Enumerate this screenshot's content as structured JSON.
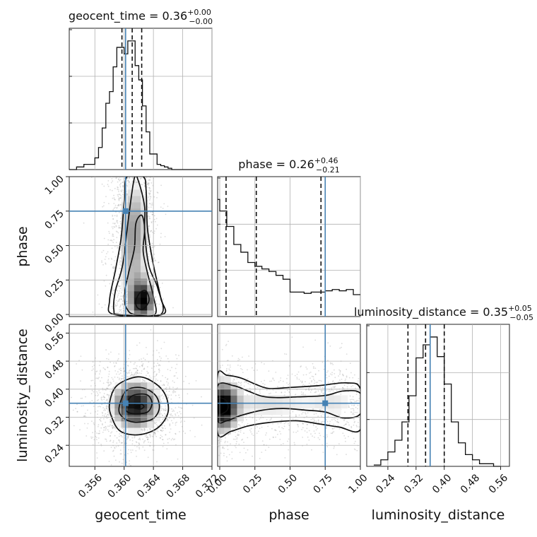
{
  "colors": {
    "truth": "#4682b4",
    "hist": "#111111",
    "grid": "#b0b0b0",
    "points": "#9a9a9a"
  },
  "chart_data": {
    "type": "corner",
    "parameters": [
      {
        "name": "geocent_time",
        "title_prefix": "geocent_time = ",
        "median": "0.36",
        "plus": "+0.00",
        "minus": "−0.00",
        "range": [
          0.3525,
          0.372
        ],
        "ticks": [
          0.356,
          0.36,
          0.364,
          0.368,
          0.372
        ],
        "ticklabels": [
          "0.356",
          "0.360",
          "0.364",
          "0.368",
          "0.372"
        ],
        "truth": 0.3602,
        "quantiles": [
          0.3597,
          0.3611,
          0.3624
        ],
        "hist_edges": [
          0.3525,
          0.3535,
          0.354,
          0.3545,
          0.355,
          0.3555,
          0.356,
          0.3565,
          0.357,
          0.3575,
          0.358,
          0.3585,
          0.359,
          0.3595,
          0.36,
          0.3605,
          0.361,
          0.3615,
          0.362,
          0.3625,
          0.363,
          0.3635,
          0.364,
          0.3645,
          0.365,
          0.3655,
          0.366,
          0.3665,
          0.372
        ],
        "hist_counts": [
          0,
          0.02,
          0.02,
          0.04,
          0.04,
          0.04,
          0.09,
          0.17,
          0.32,
          0.51,
          0.6,
          0.79,
          0.94,
          0.94,
          0.89,
          0.99,
          0.99,
          0.8,
          0.69,
          0.49,
          0.29,
          0.12,
          0.12,
          0.04,
          0.03,
          0.02,
          0.01,
          0
        ]
      },
      {
        "name": "phase",
        "title_prefix": "phase = ",
        "median": "0.26",
        "plus": "+0.46",
        "minus": "−0.21",
        "range": [
          -0.015,
          1.0
        ],
        "ticks": [
          0.0,
          0.25,
          0.5,
          0.75,
          1.0
        ],
        "ticklabels": [
          "0.00",
          "0.25",
          "0.50",
          "0.75",
          "1.00"
        ],
        "truth": 0.75,
        "quantiles": [
          0.045,
          0.26,
          0.72
        ],
        "hist_edges": [
          -0.015,
          0.0,
          0.05,
          0.1,
          0.15,
          0.2,
          0.25,
          0.3,
          0.35,
          0.4,
          0.45,
          0.5,
          0.55,
          0.6,
          0.65,
          0.7,
          0.75,
          0.8,
          0.85,
          0.9,
          0.95,
          1.0
        ],
        "hist_counts": [
          0.91,
          0.82,
          0.7,
          0.56,
          0.5,
          0.42,
          0.39,
          0.37,
          0.35,
          0.32,
          0.29,
          0.19,
          0.19,
          0.18,
          0.19,
          0.19,
          0.2,
          0.21,
          0.2,
          0.21,
          0.17
        ]
      },
      {
        "name": "luminosity_distance",
        "title_prefix": "luminosity_distance = ",
        "median": "0.35",
        "plus": "+0.05",
        "minus": "−0.05",
        "range": [
          0.18,
          0.585
        ],
        "ticks": [
          0.24,
          0.32,
          0.4,
          0.48,
          0.56
        ],
        "ticklabels": [
          "0.24",
          "0.32",
          "0.40",
          "0.48",
          "0.56"
        ],
        "truth": 0.36,
        "quantiles": [
          0.297,
          0.347,
          0.4
        ],
        "hist_edges": [
          0.2,
          0.22,
          0.24,
          0.26,
          0.28,
          0.3,
          0.32,
          0.34,
          0.36,
          0.38,
          0.4,
          0.42,
          0.44,
          0.46,
          0.48,
          0.5,
          0.52,
          0.54,
          0.56
        ],
        "hist_counts": [
          0.01,
          0.05,
          0.11,
          0.2,
          0.34,
          0.54,
          0.83,
          0.93,
          0.99,
          0.84,
          0.63,
          0.34,
          0.18,
          0.09,
          0.05,
          0.02,
          0.02,
          0
        ]
      }
    ],
    "pairs": [
      {
        "xi": 0,
        "yi": 1,
        "truth": [
          0.3602,
          0.75
        ],
        "density": [
          [
            0.3612,
            0.45,
            0.0015,
            0.34,
            0.45
          ],
          [
            0.3626,
            0.1,
            0.0011,
            0.1,
            0.9
          ],
          [
            0.3618,
            0.75,
            0.0018,
            0.22,
            0.2
          ]
        ],
        "contours": [
          [
            [
              0.3626,
              0.04
            ],
            [
              0.3634,
              0.1
            ],
            [
              0.363,
              0.17
            ],
            [
              0.3622,
              0.16
            ],
            [
              0.3616,
              0.1
            ],
            [
              0.3618,
              0.05
            ]
          ],
          [
            [
              0.3614,
              0.0
            ],
            [
              0.3642,
              0.0
            ],
            [
              0.364,
              0.13
            ],
            [
              0.3632,
              0.3
            ],
            [
              0.3626,
              0.46
            ],
            [
              0.3628,
              0.62
            ],
            [
              0.3624,
              0.72
            ],
            [
              0.3616,
              0.66
            ],
            [
              0.3614,
              0.48
            ],
            [
              0.3606,
              0.3
            ],
            [
              0.36,
              0.13
            ],
            [
              0.3604,
              0.04
            ]
          ],
          [
            [
              0.3594,
              0.0
            ],
            [
              0.365,
              0.0
            ],
            [
              0.3646,
              0.19
            ],
            [
              0.3634,
              0.35
            ],
            [
              0.3628,
              0.6
            ],
            [
              0.3628,
              0.78
            ],
            [
              0.362,
              0.96
            ],
            [
              0.3614,
              0.99
            ],
            [
              0.3606,
              0.7
            ],
            [
              0.3598,
              0.36
            ],
            [
              0.3588,
              0.17
            ],
            [
              0.3586,
              0.03
            ]
          ],
          [
            [
              0.3586,
              0.0
            ],
            [
              0.3652,
              0.0
            ],
            [
              0.365,
              0.12
            ],
            [
              0.364,
              0.36
            ],
            [
              0.3632,
              0.62
            ],
            [
              0.363,
              0.9
            ],
            [
              0.3626,
              1.0
            ],
            [
              0.3604,
              1.0
            ],
            [
              0.36,
              0.82
            ],
            [
              0.3596,
              0.56
            ],
            [
              0.3588,
              0.32
            ],
            [
              0.358,
              0.1
            ]
          ]
        ]
      },
      {
        "xi": 0,
        "yi": 2,
        "truth": [
          0.3602,
          0.36
        ],
        "density": [
          [
            0.3615,
            0.355,
            0.0022,
            0.048,
            1.0
          ]
        ],
        "contours": [
          [
            [
              0.3622,
              0.343
            ],
            [
              0.3627,
              0.35
            ],
            [
              0.3624,
              0.357
            ],
            [
              0.3616,
              0.355
            ],
            [
              0.3613,
              0.347
            ]
          ],
          [
            [
              0.3603,
              0.348
            ],
            [
              0.361,
              0.38
            ],
            [
              0.363,
              0.385
            ],
            [
              0.3638,
              0.362
            ],
            [
              0.3632,
              0.335
            ],
            [
              0.3614,
              0.33
            ],
            [
              0.3604,
              0.336
            ]
          ],
          [
            [
              0.3593,
              0.346
            ],
            [
              0.3603,
              0.396
            ],
            [
              0.3625,
              0.404
            ],
            [
              0.3643,
              0.382
            ],
            [
              0.3648,
              0.345
            ],
            [
              0.3638,
              0.314
            ],
            [
              0.3614,
              0.306
            ],
            [
              0.3598,
              0.32
            ]
          ],
          [
            [
              0.358,
              0.36
            ],
            [
              0.359,
              0.41
            ],
            [
              0.3618,
              0.435
            ],
            [
              0.364,
              0.42
            ],
            [
              0.3656,
              0.385
            ],
            [
              0.366,
              0.334
            ],
            [
              0.3646,
              0.29
            ],
            [
              0.362,
              0.27
            ],
            [
              0.3595,
              0.28
            ],
            [
              0.3583,
              0.32
            ]
          ]
        ]
      },
      {
        "xi": 1,
        "yi": 2,
        "truth": [
          0.75,
          0.36
        ],
        "density": [
          [
            0.02,
            0.35,
            0.07,
            0.05,
            1.0
          ],
          [
            0.35,
            0.36,
            0.28,
            0.045,
            0.35
          ],
          [
            0.85,
            0.36,
            0.15,
            0.045,
            0.25
          ]
        ],
        "contours": [
          [
            [
              -0.015,
              0.33
            ],
            [
              0.04,
              0.335
            ],
            [
              0.06,
              0.35
            ],
            [
              0.04,
              0.37
            ],
            [
              -0.015,
              0.372
            ]
          ],
          [
            [
              -0.015,
              0.312
            ],
            [
              0.05,
              0.31
            ],
            [
              0.15,
              0.325
            ],
            [
              0.3,
              0.34
            ],
            [
              0.45,
              0.345
            ],
            [
              0.62,
              0.34
            ],
            [
              0.75,
              0.335
            ],
            [
              0.88,
              0.318
            ],
            [
              1.0,
              0.33
            ],
            [
              1.0,
              0.388
            ],
            [
              0.88,
              0.395
            ],
            [
              0.75,
              0.382
            ],
            [
              0.55,
              0.378
            ],
            [
              0.4,
              0.376
            ],
            [
              0.3,
              0.38
            ],
            [
              0.2,
              0.395
            ],
            [
              0.1,
              0.41
            ],
            [
              -0.015,
              0.41
            ]
          ],
          [
            [
              -0.015,
              0.275
            ],
            [
              0.08,
              0.28
            ],
            [
              0.2,
              0.295
            ],
            [
              0.35,
              0.305
            ],
            [
              0.55,
              0.31
            ],
            [
              0.72,
              0.3
            ],
            [
              0.85,
              0.292
            ],
            [
              1.0,
              0.285
            ],
            [
              1.0,
              0.4
            ],
            [
              0.9,
              0.418
            ],
            [
              0.7,
              0.41
            ],
            [
              0.5,
              0.405
            ],
            [
              0.35,
              0.402
            ],
            [
              0.25,
              0.415
            ],
            [
              0.15,
              0.432
            ],
            [
              0.05,
              0.44
            ],
            [
              -0.015,
              0.44
            ]
          ]
        ]
      }
    ]
  }
}
